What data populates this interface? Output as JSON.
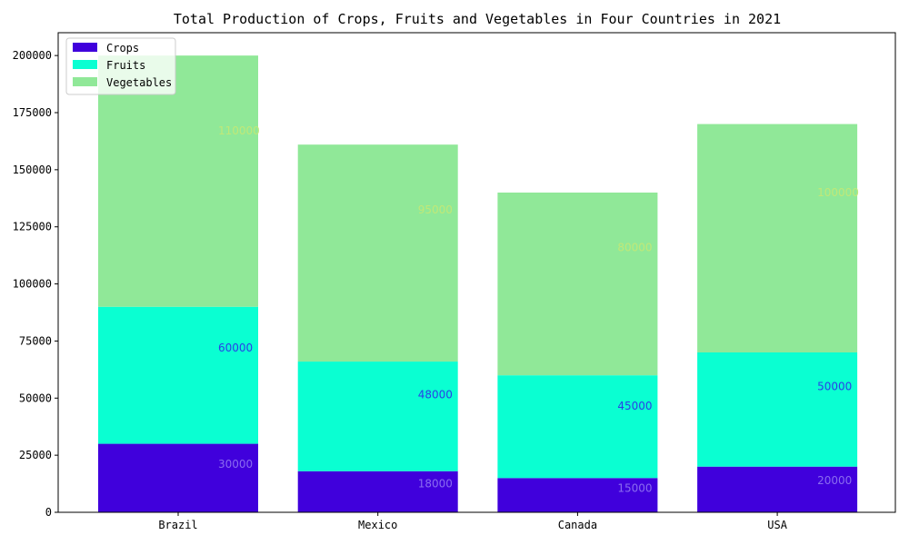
{
  "chart_data": {
    "type": "bar",
    "stacked": true,
    "title": "Total Production of Crops, Fruits and Vegetables in Four Countries in 2021",
    "xlabel": "",
    "ylabel": "",
    "categories": [
      "Brazil",
      "Mexico",
      "Canada",
      "USA"
    ],
    "series": [
      {
        "name": "Crops",
        "values": [
          30000,
          18000,
          15000,
          20000
        ],
        "color": "#4000dc",
        "label_color": "#8a6cf0"
      },
      {
        "name": "Fruits",
        "values": [
          60000,
          48000,
          45000,
          50000
        ],
        "color": "#0affd2",
        "label_color": "#2a3ee8"
      },
      {
        "name": "Vegetables",
        "values": [
          110000,
          95000,
          80000,
          100000
        ],
        "color": "#90e898",
        "label_color": "#c0e878"
      }
    ],
    "ylim": [
      0,
      210000
    ],
    "yticks": [
      0,
      25000,
      50000,
      75000,
      100000,
      125000,
      150000,
      175000,
      200000
    ],
    "grid": false,
    "legend": "top-left"
  }
}
